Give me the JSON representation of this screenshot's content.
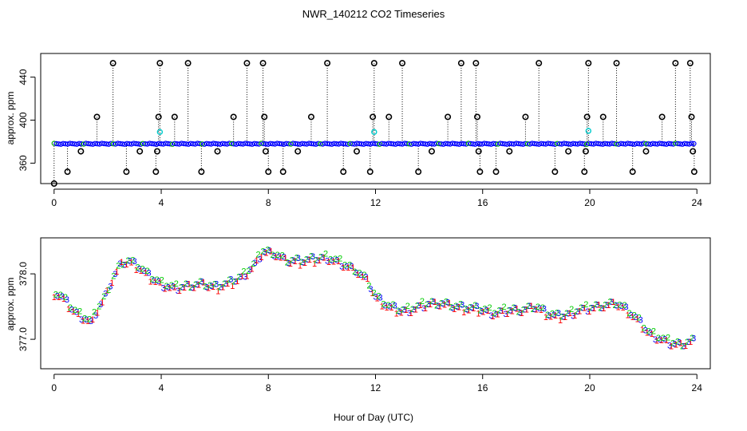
{
  "title": "NWR_140212  CO2 Timeseries",
  "xlabel": "Hour of Day (UTC)",
  "chart_data": [
    {
      "type": "scatter",
      "panel": "top",
      "ylabel": "approx. ppm",
      "xlim": [
        -0.5,
        24.5
      ],
      "ylim": [
        341,
        462
      ],
      "xticks": [
        0,
        4,
        8,
        12,
        16,
        20,
        24
      ],
      "yticks": [
        360,
        400,
        440
      ],
      "baseline": 378,
      "outliers": [
        {
          "x": 0.0,
          "y": 341
        },
        {
          "x": 0.5,
          "y": 352
        },
        {
          "x": 1.0,
          "y": 371
        },
        {
          "x": 1.6,
          "y": 403
        },
        {
          "x": 2.2,
          "y": 453
        },
        {
          "x": 2.7,
          "y": 352
        },
        {
          "x": 3.2,
          "y": 371
        },
        {
          "x": 3.8,
          "y": 352
        },
        {
          "x": 3.85,
          "y": 371
        },
        {
          "x": 3.9,
          "y": 403
        },
        {
          "x": 3.95,
          "y": 453
        },
        {
          "x": 4.5,
          "y": 403
        },
        {
          "x": 5.0,
          "y": 453
        },
        {
          "x": 5.5,
          "y": 352
        },
        {
          "x": 6.1,
          "y": 371
        },
        {
          "x": 6.7,
          "y": 403
        },
        {
          "x": 7.2,
          "y": 453
        },
        {
          "x": 7.8,
          "y": 453
        },
        {
          "x": 7.85,
          "y": 403
        },
        {
          "x": 7.9,
          "y": 371
        },
        {
          "x": 8.0,
          "y": 352
        },
        {
          "x": 8.55,
          "y": 352
        },
        {
          "x": 9.1,
          "y": 371
        },
        {
          "x": 9.6,
          "y": 403
        },
        {
          "x": 10.2,
          "y": 453
        },
        {
          "x": 10.8,
          "y": 352
        },
        {
          "x": 11.3,
          "y": 371
        },
        {
          "x": 11.8,
          "y": 352
        },
        {
          "x": 11.9,
          "y": 403
        },
        {
          "x": 11.95,
          "y": 453
        },
        {
          "x": 12.5,
          "y": 403
        },
        {
          "x": 13.0,
          "y": 453
        },
        {
          "x": 13.6,
          "y": 352
        },
        {
          "x": 14.1,
          "y": 371
        },
        {
          "x": 14.7,
          "y": 403
        },
        {
          "x": 15.2,
          "y": 453
        },
        {
          "x": 15.75,
          "y": 453
        },
        {
          "x": 15.8,
          "y": 403
        },
        {
          "x": 15.85,
          "y": 371
        },
        {
          "x": 15.9,
          "y": 352
        },
        {
          "x": 16.5,
          "y": 352
        },
        {
          "x": 17.0,
          "y": 371
        },
        {
          "x": 17.6,
          "y": 403
        },
        {
          "x": 18.1,
          "y": 453
        },
        {
          "x": 18.7,
          "y": 352
        },
        {
          "x": 19.2,
          "y": 371
        },
        {
          "x": 19.8,
          "y": 352
        },
        {
          "x": 19.85,
          "y": 371
        },
        {
          "x": 19.9,
          "y": 403
        },
        {
          "x": 19.95,
          "y": 453
        },
        {
          "x": 20.5,
          "y": 403
        },
        {
          "x": 21.0,
          "y": 453
        },
        {
          "x": 21.6,
          "y": 352
        },
        {
          "x": 22.1,
          "y": 371
        },
        {
          "x": 22.7,
          "y": 403
        },
        {
          "x": 23.2,
          "y": 453
        },
        {
          "x": 23.75,
          "y": 453
        },
        {
          "x": 23.8,
          "y": 403
        },
        {
          "x": 23.85,
          "y": 371
        },
        {
          "x": 23.9,
          "y": 352
        }
      ],
      "cyan_points": [
        {
          "x": 3.95,
          "y": 389
        },
        {
          "x": 11.95,
          "y": 389
        },
        {
          "x": 19.95,
          "y": 390
        }
      ],
      "colors": {
        "baseline_points": "#0000ff",
        "outliers": "#000000",
        "cyan": "#00cccc",
        "accent": "#00aa00"
      }
    },
    {
      "type": "scatter",
      "panel": "bottom",
      "ylabel": "approx. ppm",
      "xlim": [
        -0.5,
        24.5
      ],
      "ylim": [
        376.55,
        378.55
      ],
      "xticks": [
        0,
        4,
        8,
        12,
        16,
        20,
        24
      ],
      "yticks": [
        377.0,
        378.0
      ],
      "ytick_labels": [
        "377.0",
        "378.0"
      ],
      "series_markers": [
        "1",
        "2",
        "3"
      ],
      "series_colors": [
        "#ff0000",
        "#00cc00",
        "#0000ff"
      ],
      "profile": [
        {
          "x": 0.0,
          "y": 377.72
        },
        {
          "x": 0.3,
          "y": 377.65
        },
        {
          "x": 0.6,
          "y": 377.5
        },
        {
          "x": 0.9,
          "y": 377.38
        },
        {
          "x": 1.2,
          "y": 377.32
        },
        {
          "x": 1.4,
          "y": 377.25
        },
        {
          "x": 1.6,
          "y": 377.45
        },
        {
          "x": 1.9,
          "y": 377.65
        },
        {
          "x": 2.2,
          "y": 377.95
        },
        {
          "x": 2.5,
          "y": 378.15
        },
        {
          "x": 2.8,
          "y": 378.2
        },
        {
          "x": 3.2,
          "y": 378.1
        },
        {
          "x": 3.6,
          "y": 377.95
        },
        {
          "x": 4.0,
          "y": 377.85
        },
        {
          "x": 4.5,
          "y": 377.78
        },
        {
          "x": 5.0,
          "y": 377.82
        },
        {
          "x": 5.5,
          "y": 377.85
        },
        {
          "x": 6.0,
          "y": 377.8
        },
        {
          "x": 6.5,
          "y": 377.85
        },
        {
          "x": 7.0,
          "y": 377.95
        },
        {
          "x": 7.5,
          "y": 378.15
        },
        {
          "x": 7.8,
          "y": 378.35
        },
        {
          "x": 8.2,
          "y": 378.32
        },
        {
          "x": 8.7,
          "y": 378.2
        },
        {
          "x": 9.2,
          "y": 378.2
        },
        {
          "x": 9.7,
          "y": 378.22
        },
        {
          "x": 10.2,
          "y": 378.25
        },
        {
          "x": 10.8,
          "y": 378.15
        },
        {
          "x": 11.3,
          "y": 378.05
        },
        {
          "x": 11.7,
          "y": 377.9
        },
        {
          "x": 12.0,
          "y": 377.65
        },
        {
          "x": 12.5,
          "y": 377.5
        },
        {
          "x": 13.0,
          "y": 377.43
        },
        {
          "x": 13.5,
          "y": 377.48
        },
        {
          "x": 14.0,
          "y": 377.55
        },
        {
          "x": 14.5,
          "y": 377.55
        },
        {
          "x": 15.0,
          "y": 377.5
        },
        {
          "x": 15.5,
          "y": 377.48
        },
        {
          "x": 16.0,
          "y": 377.45
        },
        {
          "x": 16.5,
          "y": 377.4
        },
        {
          "x": 17.0,
          "y": 377.45
        },
        {
          "x": 17.5,
          "y": 377.45
        },
        {
          "x": 18.0,
          "y": 377.5
        },
        {
          "x": 18.4,
          "y": 377.4
        },
        {
          "x": 18.8,
          "y": 377.35
        },
        {
          "x": 19.2,
          "y": 377.38
        },
        {
          "x": 19.6,
          "y": 377.45
        },
        {
          "x": 20.0,
          "y": 377.48
        },
        {
          "x": 20.5,
          "y": 377.52
        },
        {
          "x": 21.0,
          "y": 377.55
        },
        {
          "x": 21.4,
          "y": 377.45
        },
        {
          "x": 21.8,
          "y": 377.3
        },
        {
          "x": 22.2,
          "y": 377.1
        },
        {
          "x": 22.6,
          "y": 377.02
        },
        {
          "x": 23.0,
          "y": 376.95
        },
        {
          "x": 23.4,
          "y": 376.92
        },
        {
          "x": 23.8,
          "y": 376.98
        }
      ]
    }
  ]
}
